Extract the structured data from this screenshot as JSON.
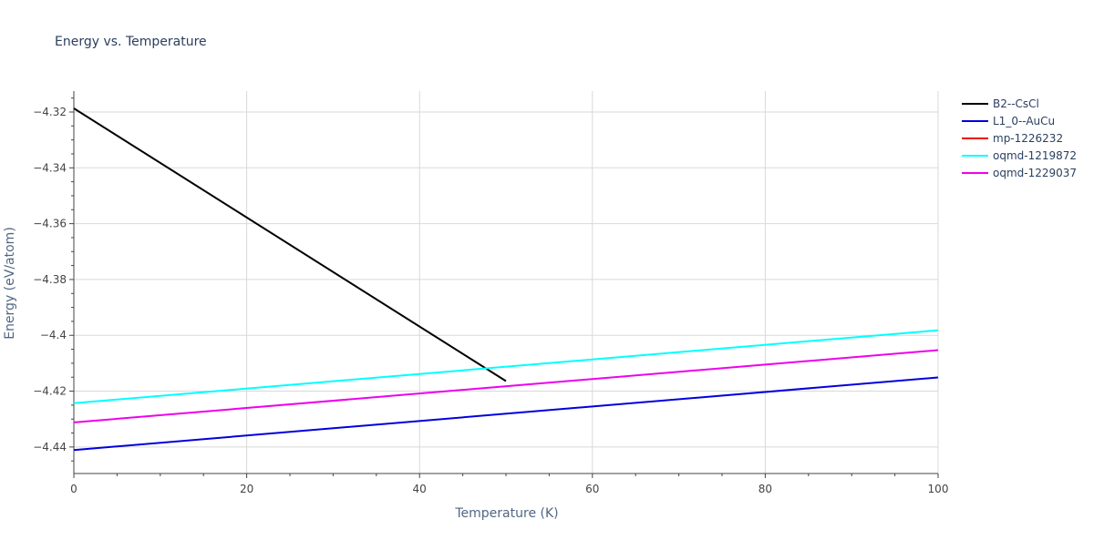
{
  "chart_data": {
    "type": "line",
    "title": "Energy vs. Temperature",
    "xlabel": "Temperature (K)",
    "ylabel": "Energy (eV/atom)",
    "xlim": [
      0,
      100
    ],
    "ylim": [
      -4.4495,
      -4.3125
    ],
    "x_ticks": [
      0,
      20,
      40,
      60,
      80,
      100
    ],
    "y_ticks": [
      -4.44,
      -4.42,
      -4.4,
      -4.38,
      -4.36,
      -4.34,
      -4.32
    ],
    "x_tick_labels": [
      "0",
      "20",
      "40",
      "60",
      "80",
      "100"
    ],
    "y_tick_labels": [
      "−4.44",
      "−4.42",
      "−4.4",
      "−4.38",
      "−4.36",
      "−4.34",
      "−4.32"
    ],
    "grid": true,
    "legend_position": "top-right",
    "series": [
      {
        "name": "B2--CsCl",
        "color": "#000000",
        "x": [
          0,
          50
        ],
        "y": [
          -4.3187,
          -4.4164
        ]
      },
      {
        "name": "L1_0--AuCu",
        "color": "#0000dd",
        "x": [
          0,
          100
        ],
        "y": [
          -4.4411,
          -4.4151
        ]
      },
      {
        "name": "mp-1226232",
        "color": "#ee0000",
        "x": [],
        "y": []
      },
      {
        "name": "oqmd-1219872",
        "color": "#00ffff",
        "x": [
          0,
          100
        ],
        "y": [
          -4.4243,
          -4.3982
        ]
      },
      {
        "name": "oqmd-1229037",
        "color": "#ee00ee",
        "x": [
          0,
          100
        ],
        "y": [
          -4.4312,
          -4.4053
        ]
      }
    ]
  }
}
